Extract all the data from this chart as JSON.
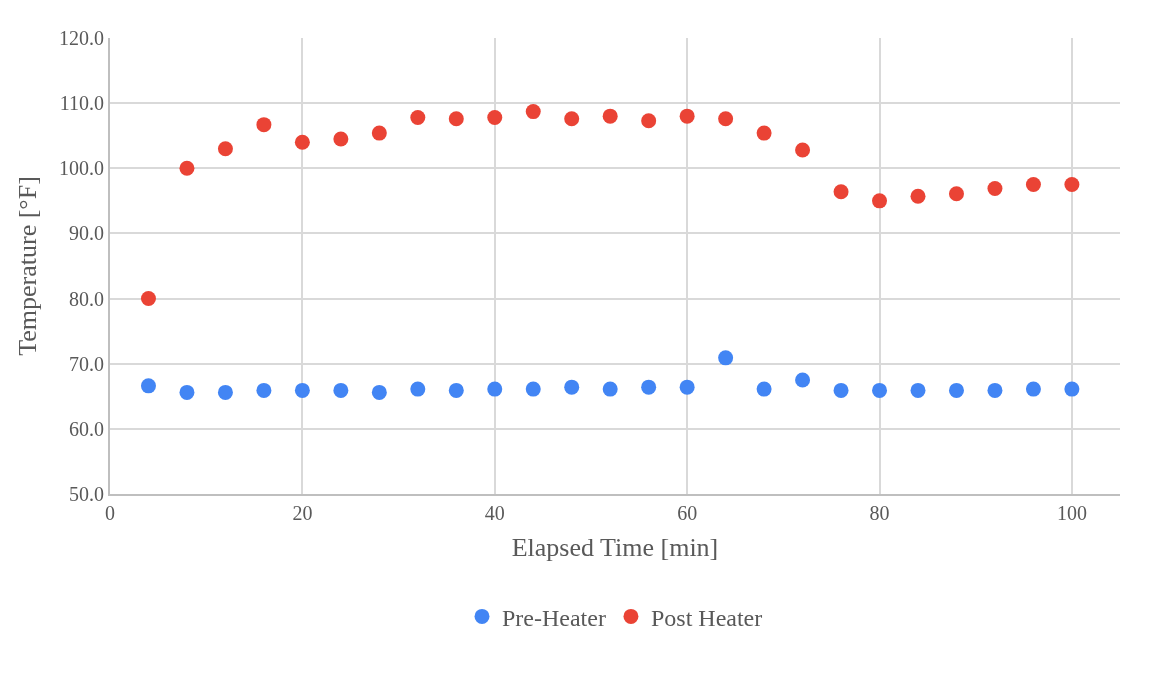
{
  "chart_data": {
    "type": "scatter",
    "xlabel": "Elapsed Time [min]",
    "ylabel": "Temperature [°F]",
    "x": [
      4,
      8,
      12,
      16,
      20,
      24,
      28,
      32,
      36,
      40,
      44,
      48,
      52,
      56,
      60,
      64,
      68,
      72,
      76,
      80,
      84,
      88,
      92,
      96,
      100
    ],
    "series": [
      {
        "name": "Pre-Heater",
        "color": "#4285f4",
        "values": [
          66.6,
          65.6,
          65.6,
          65.9,
          65.9,
          65.9,
          65.6,
          66.1,
          65.9,
          66.1,
          66.1,
          66.4,
          66.1,
          66.4,
          66.4,
          70.9,
          66.1,
          67.5,
          65.9,
          65.9,
          65.9,
          65.9,
          65.9,
          66.1,
          66.1
        ]
      },
      {
        "name": "Post Heater",
        "color": "#ea4335",
        "values": [
          80.0,
          100.0,
          103.0,
          106.7,
          104.0,
          104.5,
          105.4,
          107.8,
          107.6,
          107.8,
          108.7,
          107.6,
          108.0,
          107.3,
          108.0,
          107.6,
          105.4,
          102.8,
          96.4,
          95.0,
          95.7,
          96.1,
          96.9,
          97.5,
          97.5
        ]
      }
    ],
    "xlim": [
      0,
      105
    ],
    "xticks": [
      0,
      20,
      40,
      60,
      80,
      100
    ],
    "ylim": [
      50,
      120
    ],
    "yticks": [
      {
        "value": 50,
        "label": "50.0"
      },
      {
        "value": 60,
        "label": "60.0"
      },
      {
        "value": 70,
        "label": "70.0"
      },
      {
        "value": 80,
        "label": "80.0"
      },
      {
        "value": 90,
        "label": "90.0"
      },
      {
        "value": 100,
        "label": "100.0"
      },
      {
        "value": 110,
        "label": "110.0"
      },
      {
        "value": 120,
        "label": "120.0"
      }
    ],
    "grid": true,
    "legend": "bottom",
    "marker": "circle"
  }
}
